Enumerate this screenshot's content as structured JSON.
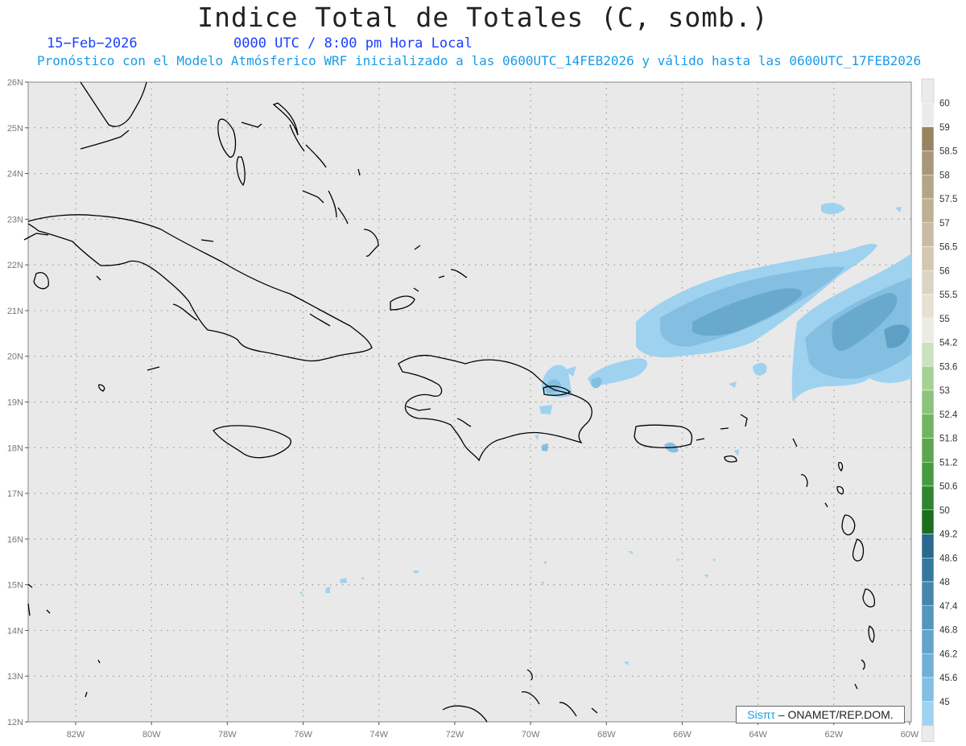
{
  "header": {
    "title": "Indice Total de Totales (C, somb.)",
    "date": "15−Feb−2026",
    "time": "0000 UTC / 8:00 pm Hora Local",
    "subtitle": "Pronóstico con el Modelo Atmósferico WRF inicializado a las 0600UTC_14FEB2026 y válido hasta las  0600UTC_17FEB2026"
  },
  "axes": {
    "lat_labels": [
      "26N",
      "25N",
      "24N",
      "23N",
      "22N",
      "21N",
      "20N",
      "19N",
      "18N",
      "17N",
      "16N",
      "15N",
      "14N",
      "13N",
      "12N"
    ],
    "lon_labels": [
      "82W",
      "80W",
      "78W",
      "76W",
      "74W",
      "72W",
      "70W",
      "68W",
      "66W",
      "64W",
      "62W",
      "60W"
    ]
  },
  "colorbar": {
    "labels": [
      "60",
      "59",
      "58.5",
      "58",
      "57.5",
      "57",
      "56.5",
      "56",
      "55.5",
      "55",
      "54.2",
      "53.6",
      "53",
      "52.4",
      "51.8",
      "51.2",
      "50.6",
      "50",
      "49.2",
      "48.6",
      "48",
      "47.4",
      "46.8",
      "46.2",
      "45.6",
      "45"
    ],
    "colors": [
      "#ebebeb",
      "#978461",
      "#a89779",
      "#b5a588",
      "#bfb096",
      "#c9bca5",
      "#d3c8b4",
      "#ddd3c3",
      "#e6dfd3",
      "#ecebe6",
      "#c9e3bf",
      "#a6d196",
      "#8cc37c",
      "#72b463",
      "#5ca64e",
      "#489a3f",
      "#2f8530",
      "#1d6d1f",
      "#2a6a8c",
      "#36789d",
      "#4686ab",
      "#5596bd",
      "#62a4cb",
      "#71b0d6",
      "#83bfe2",
      "#a0d3f0"
    ]
  },
  "credit": {
    "brand": "Sisπτ",
    "text": " – ONAMET/REP.DOM."
  },
  "map_colors": {
    "background": "#e9e9e9",
    "coast": "#000000",
    "grid": "#9a9a9a",
    "light_blue": "#9fd2ef",
    "mid_blue": "#84bfe2",
    "dark_blue": "#5f9fc6"
  }
}
